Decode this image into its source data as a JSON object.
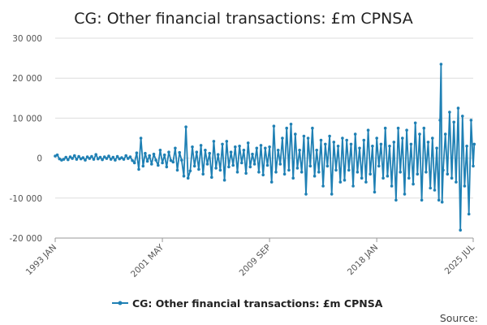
{
  "chart_data": {
    "type": "line",
    "title": "CG: Other financial transactions: £m CPNSA",
    "xlabel": "",
    "ylabel": "",
    "x_start": "1993 JAN",
    "x_end": "2025 JUL",
    "x_ticks": [
      "1993 JAN",
      "2001 MAY",
      "2009 SEP",
      "2018 JAN",
      "2025 JUL"
    ],
    "x_tick_months": [
      0,
      100,
      200,
      300,
      390
    ],
    "ylim": [
      -20000,
      30000
    ],
    "y_ticks": [
      -20000,
      -10000,
      0,
      10000,
      20000,
      30000
    ],
    "y_tick_labels": [
      "-20 000",
      "-10 000",
      "0",
      "10 000",
      "20 000",
      "30 000"
    ],
    "grid": true,
    "legend": "bottom",
    "source_label": "Source:",
    "series": [
      {
        "name": "CG: Other financial transactions: £m CPNSA",
        "color": "#1f80b4",
        "points": [
          [
            0,
            500
          ],
          [
            2,
            800
          ],
          [
            4,
            -200
          ],
          [
            6,
            -500
          ],
          [
            8,
            -300
          ],
          [
            10,
            200
          ],
          [
            12,
            -400
          ],
          [
            14,
            300
          ],
          [
            16,
            -100
          ],
          [
            18,
            600
          ],
          [
            20,
            -300
          ],
          [
            22,
            400
          ],
          [
            24,
            -200
          ],
          [
            26,
            100
          ],
          [
            28,
            -500
          ],
          [
            30,
            300
          ],
          [
            32,
            -100
          ],
          [
            34,
            400
          ],
          [
            36,
            -300
          ],
          [
            38,
            900
          ],
          [
            40,
            -200
          ],
          [
            42,
            200
          ],
          [
            44,
            -400
          ],
          [
            46,
            300
          ],
          [
            48,
            -100
          ],
          [
            50,
            500
          ],
          [
            52,
            -300
          ],
          [
            54,
            200
          ],
          [
            56,
            -500
          ],
          [
            58,
            400
          ],
          [
            60,
            -200
          ],
          [
            62,
            100
          ],
          [
            64,
            -300
          ],
          [
            66,
            600
          ],
          [
            68,
            -100
          ],
          [
            70,
            300
          ],
          [
            72,
            -600
          ],
          [
            74,
            -1200
          ],
          [
            76,
            1300
          ],
          [
            78,
            -2800
          ],
          [
            80,
            5000
          ],
          [
            82,
            -2000
          ],
          [
            84,
            1200
          ],
          [
            86,
            -800
          ],
          [
            88,
            600
          ],
          [
            90,
            -1500
          ],
          [
            92,
            1000
          ],
          [
            94,
            -500
          ],
          [
            96,
            -1800
          ],
          [
            98,
            2000
          ],
          [
            100,
            -1200
          ],
          [
            102,
            800
          ],
          [
            104,
            -2200
          ],
          [
            106,
            1500
          ],
          [
            108,
            -600
          ],
          [
            110,
            -1000
          ],
          [
            112,
            2500
          ],
          [
            114,
            -3000
          ],
          [
            116,
            1400
          ],
          [
            118,
            -500
          ],
          [
            120,
            -4500
          ],
          [
            122,
            7800
          ],
          [
            124,
            -5000
          ],
          [
            126,
            -3200
          ],
          [
            128,
            2800
          ],
          [
            130,
            -2000
          ],
          [
            132,
            1500
          ],
          [
            134,
            -2800
          ],
          [
            136,
            3200
          ],
          [
            138,
            -4000
          ],
          [
            140,
            2000
          ],
          [
            142,
            -1500
          ],
          [
            144,
            1200
          ],
          [
            146,
            -4800
          ],
          [
            148,
            4200
          ],
          [
            150,
            -2500
          ],
          [
            152,
            900
          ],
          [
            154,
            -3000
          ],
          [
            156,
            3500
          ],
          [
            158,
            -5500
          ],
          [
            160,
            4200
          ],
          [
            162,
            -2200
          ],
          [
            164,
            1500
          ],
          [
            166,
            -1800
          ],
          [
            168,
            2800
          ],
          [
            170,
            -3500
          ],
          [
            172,
            3000
          ],
          [
            174,
            -1200
          ],
          [
            176,
            2000
          ],
          [
            178,
            -3800
          ],
          [
            180,
            3800
          ],
          [
            182,
            -2200
          ],
          [
            184,
            1000
          ],
          [
            186,
            -1500
          ],
          [
            188,
            2500
          ],
          [
            190,
            -3500
          ],
          [
            192,
            3200
          ],
          [
            194,
            -4200
          ],
          [
            196,
            2500
          ],
          [
            198,
            -1800
          ],
          [
            200,
            2800
          ],
          [
            202,
            -6000
          ],
          [
            204,
            8000
          ],
          [
            206,
            -3500
          ],
          [
            208,
            2000
          ],
          [
            210,
            -1500
          ],
          [
            212,
            5000
          ],
          [
            214,
            -4000
          ],
          [
            216,
            7500
          ],
          [
            218,
            -3000
          ],
          [
            220,
            8500
          ],
          [
            222,
            -5000
          ],
          [
            224,
            6000
          ],
          [
            226,
            -2500
          ],
          [
            228,
            2000
          ],
          [
            230,
            -3500
          ],
          [
            232,
            5500
          ],
          [
            234,
            -9000
          ],
          [
            236,
            5000
          ],
          [
            238,
            -2000
          ],
          [
            240,
            7500
          ],
          [
            242,
            -4500
          ],
          [
            244,
            2000
          ],
          [
            246,
            -3500
          ],
          [
            248,
            4500
          ],
          [
            250,
            -7000
          ],
          [
            252,
            3500
          ],
          [
            254,
            -2000
          ],
          [
            256,
            5500
          ],
          [
            258,
            -9000
          ],
          [
            260,
            4000
          ],
          [
            262,
            -3000
          ],
          [
            264,
            3000
          ],
          [
            266,
            -6000
          ],
          [
            268,
            5000
          ],
          [
            270,
            -5500
          ],
          [
            272,
            4500
          ],
          [
            274,
            -3000
          ],
          [
            276,
            3500
          ],
          [
            278,
            -7000
          ],
          [
            280,
            6000
          ],
          [
            282,
            -3500
          ],
          [
            284,
            2500
          ],
          [
            286,
            -5000
          ],
          [
            288,
            4500
          ],
          [
            290,
            -6000
          ],
          [
            292,
            7000
          ],
          [
            294,
            -4000
          ],
          [
            296,
            3000
          ],
          [
            298,
            -8500
          ],
          [
            300,
            5000
          ],
          [
            302,
            -2000
          ],
          [
            304,
            3500
          ],
          [
            306,
            -5000
          ],
          [
            308,
            7500
          ],
          [
            310,
            -4500
          ],
          [
            312,
            3000
          ],
          [
            314,
            -7000
          ],
          [
            316,
            4000
          ],
          [
            318,
            -10500
          ],
          [
            320,
            7500
          ],
          [
            322,
            -3500
          ],
          [
            324,
            5000
          ],
          [
            326,
            -9000
          ],
          [
            328,
            7000
          ],
          [
            330,
            -5000
          ],
          [
            332,
            3500
          ],
          [
            334,
            -6500
          ],
          [
            336,
            8800
          ],
          [
            338,
            -4000
          ],
          [
            340,
            6000
          ],
          [
            342,
            -10500
          ],
          [
            344,
            7500
          ],
          [
            346,
            -3500
          ],
          [
            348,
            4000
          ],
          [
            350,
            -7500
          ],
          [
            352,
            5000
          ],
          [
            354,
            -8000
          ],
          [
            356,
            2500
          ],
          [
            358,
            -10500
          ],
          [
            359,
            9500
          ],
          [
            360,
            23500
          ],
          [
            361,
            -11000
          ],
          [
            362,
            -3000
          ],
          [
            364,
            6000
          ],
          [
            366,
            -4000
          ],
          [
            368,
            11500
          ],
          [
            370,
            -5000
          ],
          [
            372,
            9000
          ],
          [
            374,
            -6000
          ],
          [
            376,
            12500
          ],
          [
            378,
            -18000
          ],
          [
            380,
            10500
          ],
          [
            382,
            -7000
          ],
          [
            384,
            3000
          ],
          [
            386,
            -14000
          ],
          [
            388,
            9500
          ],
          [
            390,
            -2000
          ],
          [
            391,
            3500
          ]
        ]
      }
    ]
  }
}
